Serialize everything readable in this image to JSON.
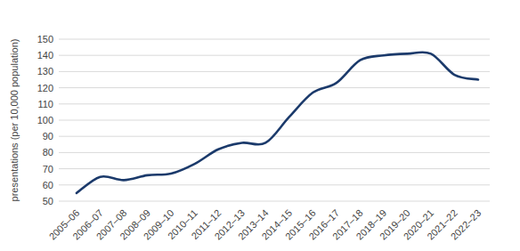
{
  "chart_data": {
    "type": "line",
    "y_label": "presentations (per 10,000 population)",
    "categories": [
      "2005–06",
      "2006–07",
      "2007–08",
      "2008–09",
      "2009–10",
      "2010–11",
      "2011–12",
      "2012–13",
      "2013–14",
      "2014–15",
      "2015–16",
      "2016–17",
      "2017–18",
      "2018–19",
      "2019–20",
      "2020–21",
      "2021–22",
      "2022–23"
    ],
    "values": [
      55,
      65,
      63,
      66,
      67,
      73,
      82,
      86,
      86,
      102,
      117,
      123,
      137,
      140,
      141,
      141,
      128,
      125
    ],
    "color": "#1b3a6b",
    "ylim": [
      50,
      150
    ],
    "yticks": [
      50,
      60,
      70,
      80,
      90,
      100,
      110,
      120,
      130,
      140,
      150
    ],
    "grid": true
  }
}
